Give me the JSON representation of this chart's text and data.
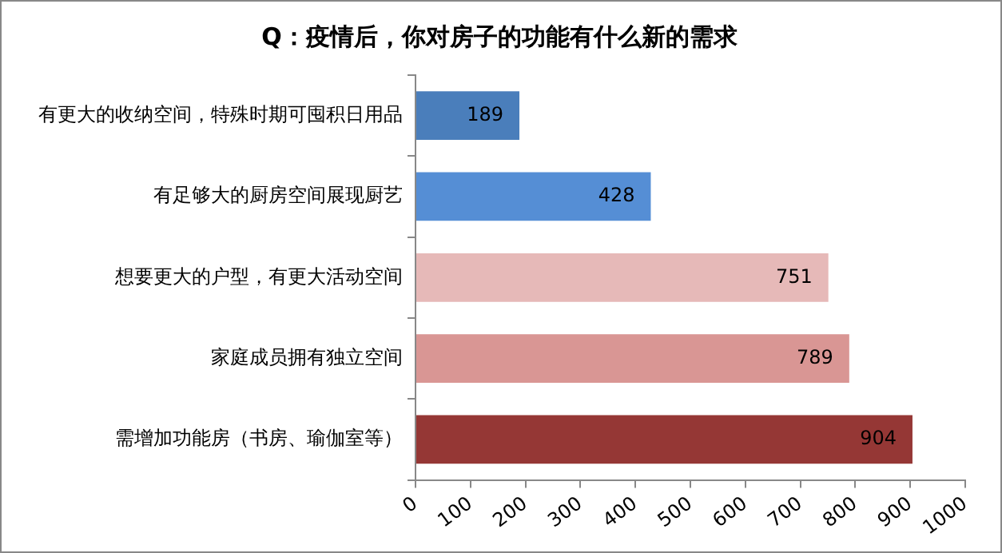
{
  "chart_data": {
    "type": "bar",
    "orientation": "horizontal",
    "title": "Q：疫情后，你对房子的功能有什么新的需求",
    "categories": [
      "有更大的收纳空间，特殊时期可囤积日用品",
      "有足够大的厨房空间展现厨艺",
      "想要更大的户型，有更大活动空间",
      "家庭成员拥有独立空间",
      "需增加功能房（书房、瑜伽室等）"
    ],
    "values": [
      189,
      428,
      751,
      789,
      904
    ],
    "colors": [
      "#4a7ebb",
      "#558ed5",
      "#e6b9b8",
      "#d99694",
      "#953735"
    ],
    "xlim": [
      0,
      1000
    ],
    "xticks": [
      0,
      100,
      200,
      300,
      400,
      500,
      600,
      700,
      800,
      900,
      1000
    ],
    "grid": false,
    "legend": false,
    "data_labels": true
  }
}
